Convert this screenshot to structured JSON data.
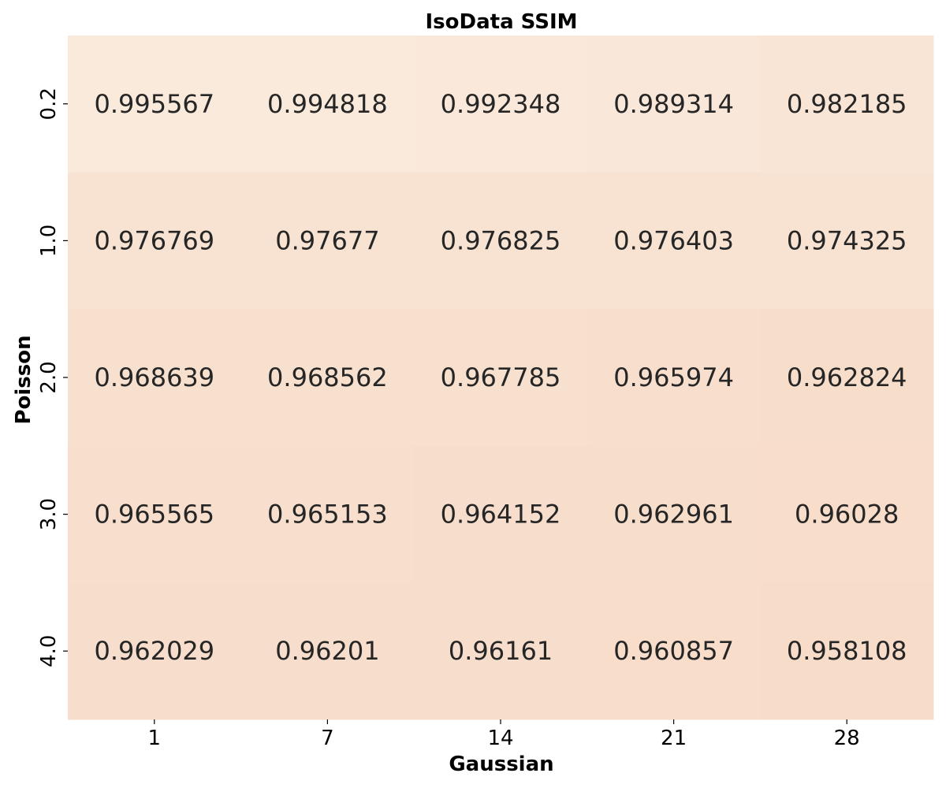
{
  "chart_data": {
    "type": "heatmap",
    "title": "IsoData SSIM",
    "xlabel": "Gaussian",
    "ylabel": "Poisson",
    "x_categories": [
      "1",
      "7",
      "14",
      "21",
      "28"
    ],
    "y_categories": [
      "0.2",
      "1.0",
      "2.0",
      "3.0",
      "4.0"
    ],
    "values": [
      [
        0.995567,
        0.994818,
        0.992348,
        0.989314,
        0.982185
      ],
      [
        0.976769,
        0.97677,
        0.976825,
        0.976403,
        0.974325
      ],
      [
        0.968639,
        0.968562,
        0.967785,
        0.965974,
        0.962824
      ],
      [
        0.965565,
        0.965153,
        0.964152,
        0.962961,
        0.96028
      ],
      [
        0.962029,
        0.96201,
        0.96161,
        0.960857,
        0.958108
      ]
    ],
    "value_labels": [
      [
        "0.995567",
        "0.994818",
        "0.992348",
        "0.989314",
        "0.982185"
      ],
      [
        "0.976769",
        "0.97677",
        "0.976825",
        "0.976403",
        "0.974325"
      ],
      [
        "0.968639",
        "0.968562",
        "0.967785",
        "0.965974",
        "0.962824"
      ],
      [
        "0.965565",
        "0.965153",
        "0.964152",
        "0.962961",
        "0.96028"
      ],
      [
        "0.962029",
        "0.96201",
        "0.96161",
        "0.960857",
        "0.958108"
      ]
    ],
    "color_scale": {
      "low_color": "#f7dcc9",
      "high_color": "#faeadc",
      "text_color": "#262626"
    },
    "colorbar": false,
    "grid": false,
    "legend": "none"
  }
}
